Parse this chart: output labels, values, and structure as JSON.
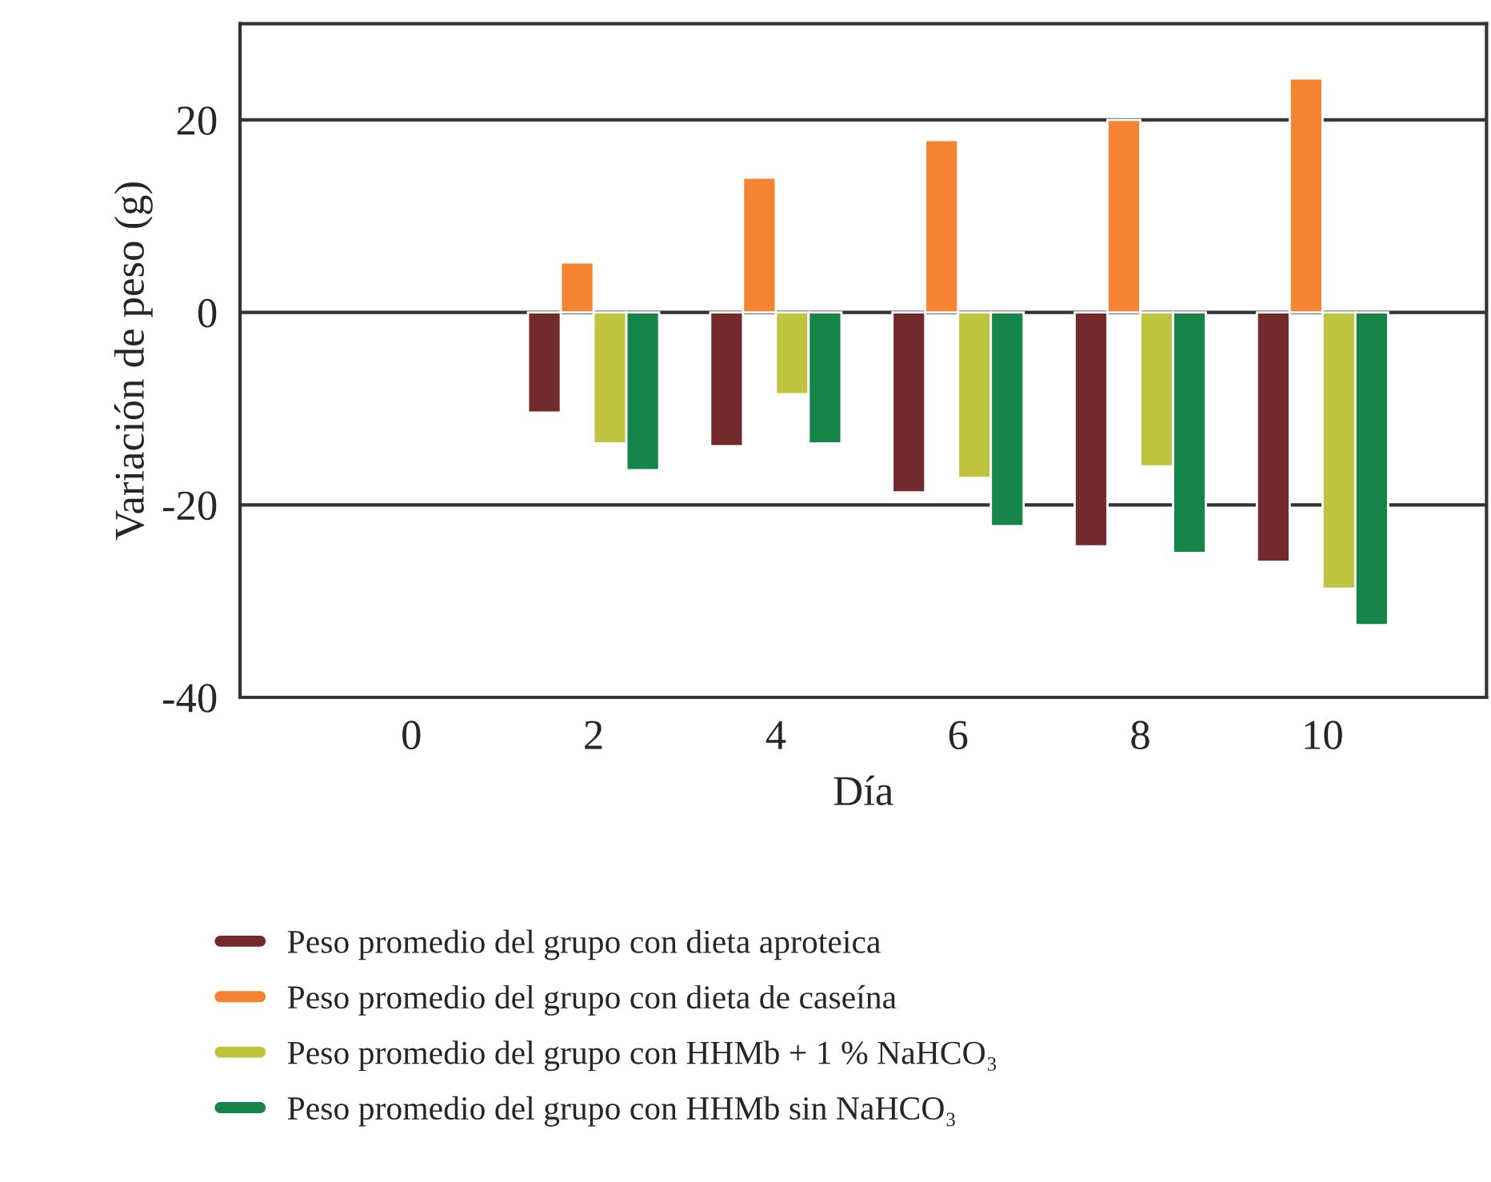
{
  "chart_data": {
    "type": "bar",
    "xlabel": "Día",
    "ylabel": "Variación de peso (g)",
    "categories": [
      "0",
      "2",
      "4",
      "6",
      "8",
      "10"
    ],
    "series": [
      {
        "name": "Peso promedio del grupo con dieta aproteica",
        "color": "#722a2c",
        "values": [
          null,
          -10.4,
          -13.9,
          -18.7,
          -24.3,
          -25.9
        ]
      },
      {
        "name": "Peso promedio del grupo con dieta de caseína",
        "color": "#f48431",
        "values": [
          null,
          5.2,
          14.0,
          17.9,
          20.0,
          24.3
        ]
      },
      {
        "name": "Peso promedio del grupo con HHMb + 1 % NaHCO₃",
        "color": "#bfc43f",
        "values": [
          null,
          -13.6,
          -8.5,
          -17.2,
          -16.0,
          -28.7
        ]
      },
      {
        "name": "Peso promedio del grupo con HHMb sin NaHCO₃",
        "color": "#17844a",
        "values": [
          null,
          -16.4,
          -13.6,
          -22.2,
          -25.0,
          -32.5
        ]
      }
    ],
    "ylim": [
      -40,
      30
    ],
    "yticks": [
      -40,
      -20,
      0,
      20
    ],
    "grid": "y",
    "legend": "bottom"
  }
}
